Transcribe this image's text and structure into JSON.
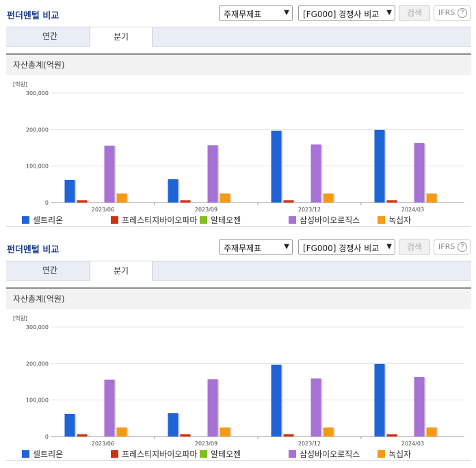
{
  "panels": [
    {
      "title": "펀더멘털 비교",
      "select_statement": "주재무제표",
      "select_compare": "[FG000] 경쟁사 비교",
      "search_label": "검색",
      "ifrs_label": "IFRS",
      "help_label": "?",
      "tabs": [
        {
          "label": "연간"
        },
        {
          "label": "분기"
        }
      ],
      "active_tab": "분기",
      "section_title": "자산총계(억원)"
    },
    {
      "title": "펀더멘털 비교",
      "select_statement": "주재무제표",
      "select_compare": "[FG000] 경쟁사 비교",
      "search_label": "검색",
      "ifrs_label": "IFRS",
      "help_label": "?",
      "tabs": [
        {
          "label": "연간"
        },
        {
          "label": "분기"
        }
      ],
      "active_tab": "분기",
      "section_title": "자산총계(억원)"
    }
  ],
  "chart_data": [
    {
      "type": "bar",
      "unit_label": "[억원]",
      "categories": [
        "2023/06",
        "2023/09",
        "2023/12",
        "2024/03"
      ],
      "ylim": [
        0,
        300000
      ],
      "yticks": [
        "0",
        "100,000",
        "200,000",
        "300,000"
      ],
      "ytick_values": [
        0,
        100000,
        200000,
        300000
      ],
      "grid": true,
      "legend_position": "bottom",
      "series": [
        {
          "name": "셀트리온",
          "color": "#1f63d8",
          "values": [
            62000,
            64000,
            197000,
            199000
          ]
        },
        {
          "name": "프레스티지바이오파마",
          "color": "#d0300f",
          "values": [
            6500,
            6500,
            6500,
            6500
          ]
        },
        {
          "name": "알테오젠",
          "color": "#7fbf1f",
          "values": [
            0,
            0,
            0,
            0
          ]
        },
        {
          "name": "삼성바이오로직스",
          "color": "#a772d6",
          "values": [
            156000,
            157000,
            159000,
            163000
          ]
        },
        {
          "name": "녹십자",
          "color": "#f59a12",
          "values": [
            25000,
            25000,
            25000,
            25000
          ]
        }
      ]
    },
    {
      "type": "bar",
      "unit_label": "[억원]",
      "categories": [
        "2023/06",
        "2023/09",
        "2023/12",
        "2024/03"
      ],
      "ylim": [
        0,
        300000
      ],
      "yticks": [
        "0",
        "100,000",
        "200,000",
        "300,000"
      ],
      "ytick_values": [
        0,
        100000,
        200000,
        300000
      ],
      "grid": true,
      "legend_position": "bottom",
      "series": [
        {
          "name": "셀트리온",
          "color": "#1f63d8",
          "values": [
            62000,
            64000,
            197000,
            199000
          ]
        },
        {
          "name": "프레스티지바이오파마",
          "color": "#d0300f",
          "values": [
            6500,
            6500,
            6500,
            6500
          ]
        },
        {
          "name": "알테오젠",
          "color": "#7fbf1f",
          "values": [
            0,
            0,
            0,
            0
          ]
        },
        {
          "name": "삼성바이오로직스",
          "color": "#a772d6",
          "values": [
            156000,
            157000,
            159000,
            163000
          ]
        },
        {
          "name": "녹십자",
          "color": "#f59a12",
          "values": [
            25000,
            25000,
            25000,
            25000
          ]
        }
      ]
    }
  ]
}
